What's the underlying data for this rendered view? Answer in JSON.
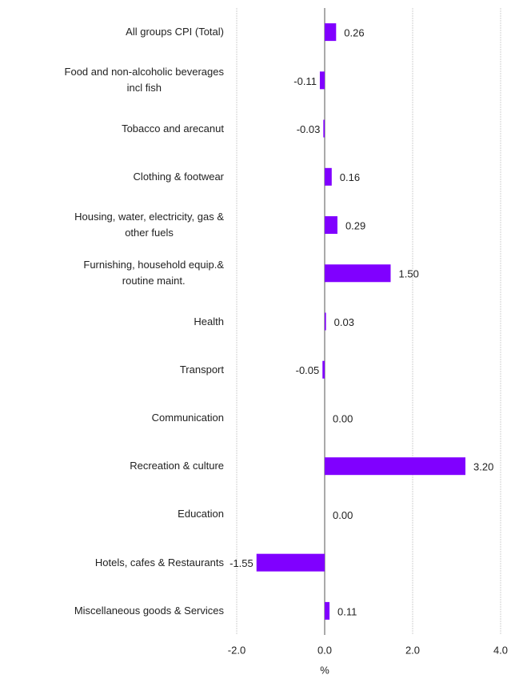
{
  "chart_data": {
    "type": "bar",
    "orientation": "horizontal",
    "categories": [
      "All groups CPI (Total)",
      "Food and non-alcoholic beverages\nincl fish",
      "Tobacco and arecanut",
      "Clothing & footwear",
      "Housing, water, electricity, gas &\nother fuels",
      "Furnishing, household equip.&\nroutine maint.",
      "Health",
      "Transport",
      "Communication",
      "Recreation & culture",
      "Education",
      "Hotels, cafes & Restaurants",
      "Miscellaneous goods & Services"
    ],
    "values": [
      0.26,
      -0.11,
      -0.03,
      0.16,
      0.29,
      1.5,
      0.03,
      -0.05,
      0,
      3.2,
      0,
      -1.55,
      0.11
    ],
    "value_labels": [
      "0.26",
      "-0.11",
      "-0.03",
      "0.16",
      "0.29",
      "1.50",
      "0.03",
      "-0.05",
      "0.00",
      "3.20",
      "0.00",
      "-1.55",
      "0.11"
    ],
    "color": "#8000ff",
    "xlim": [
      -2,
      4
    ],
    "xticks": [
      {
        "value": -2,
        "label": "-2.0"
      },
      {
        "value": 0,
        "label": "0.0"
      },
      {
        "value": 2,
        "label": "2.0"
      },
      {
        "value": 4,
        "label": "4.0"
      }
    ],
    "xlabel": "%",
    "grid": true
  }
}
